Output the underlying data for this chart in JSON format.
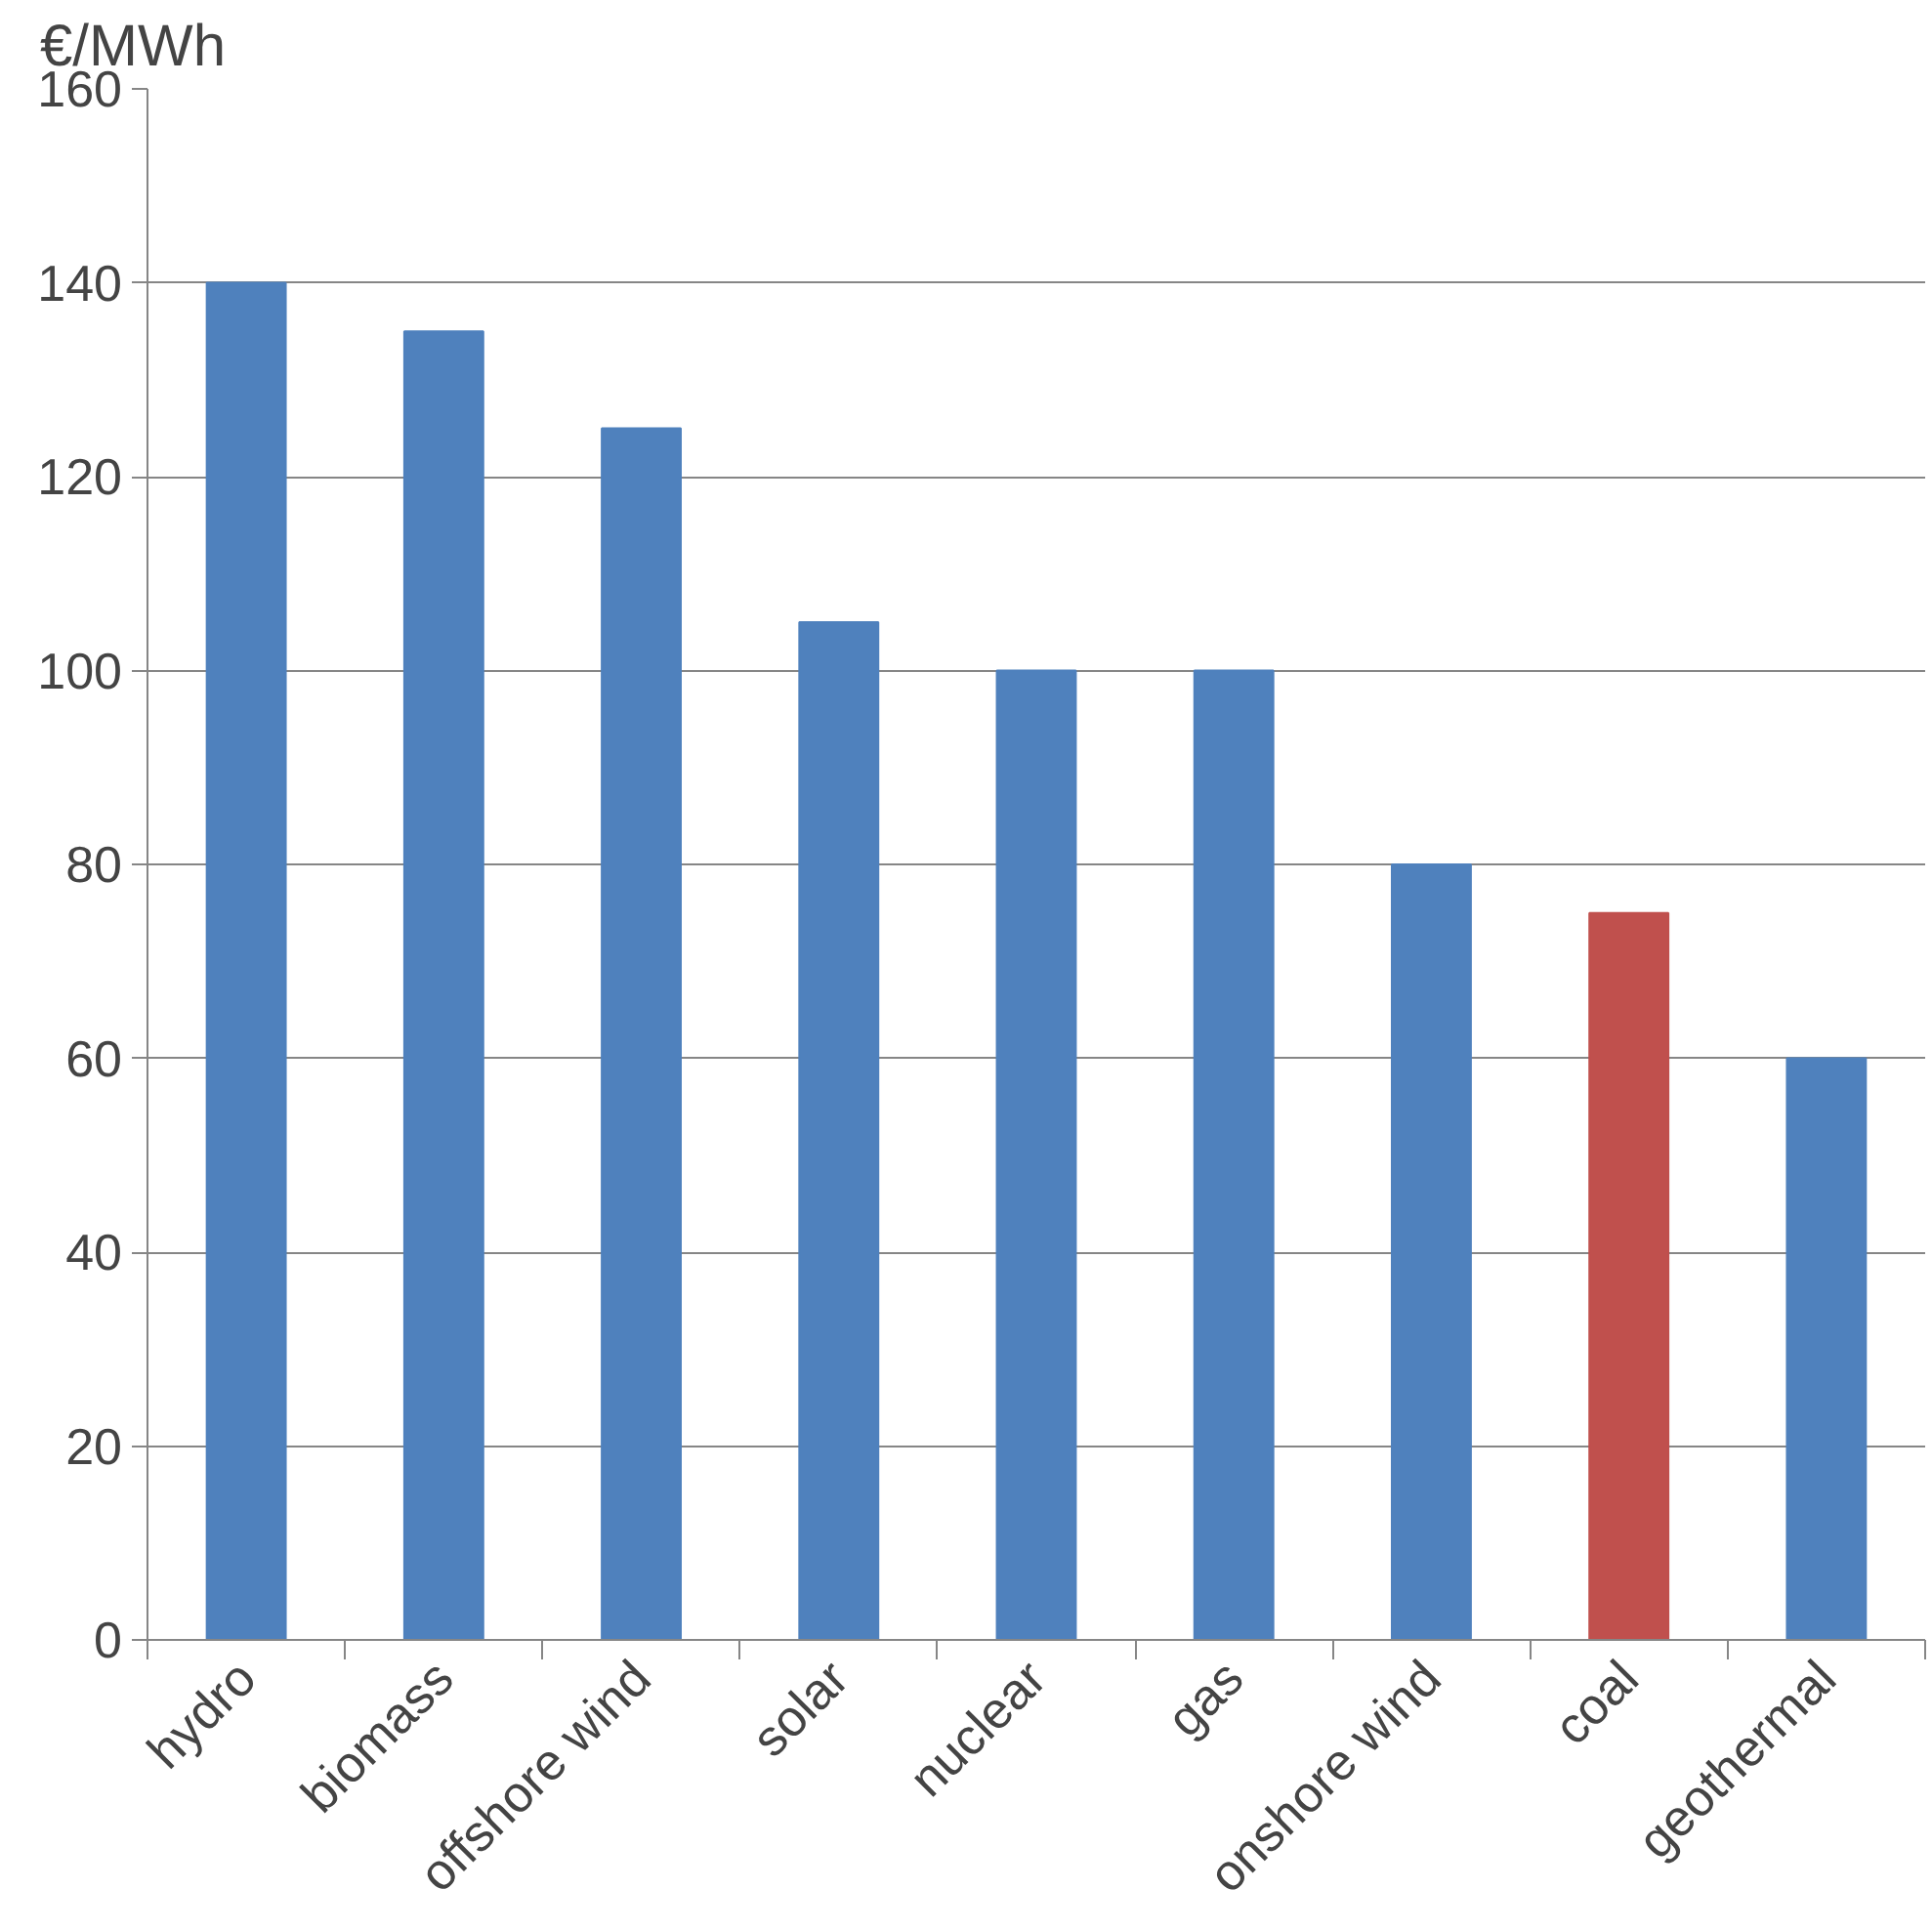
{
  "chart_data": {
    "type": "bar",
    "ylabel": "€/MWh",
    "categories": [
      "hydro",
      "biomass",
      "offshore wind",
      "solar",
      "nuclear",
      "gas",
      "onshore wind",
      "coal",
      "geothermal"
    ],
    "values": [
      140,
      135,
      125,
      105,
      100,
      100,
      80,
      75,
      60
    ],
    "colors": [
      "#4f81bd",
      "#4f81bd",
      "#4f81bd",
      "#4f81bd",
      "#4f81bd",
      "#4f81bd",
      "#4f81bd",
      "#c0504d",
      "#4f81bd"
    ],
    "ylim": [
      0,
      160
    ],
    "yticks": [
      0,
      20,
      40,
      60,
      80,
      100,
      120,
      140,
      160
    ],
    "grid": "y"
  }
}
